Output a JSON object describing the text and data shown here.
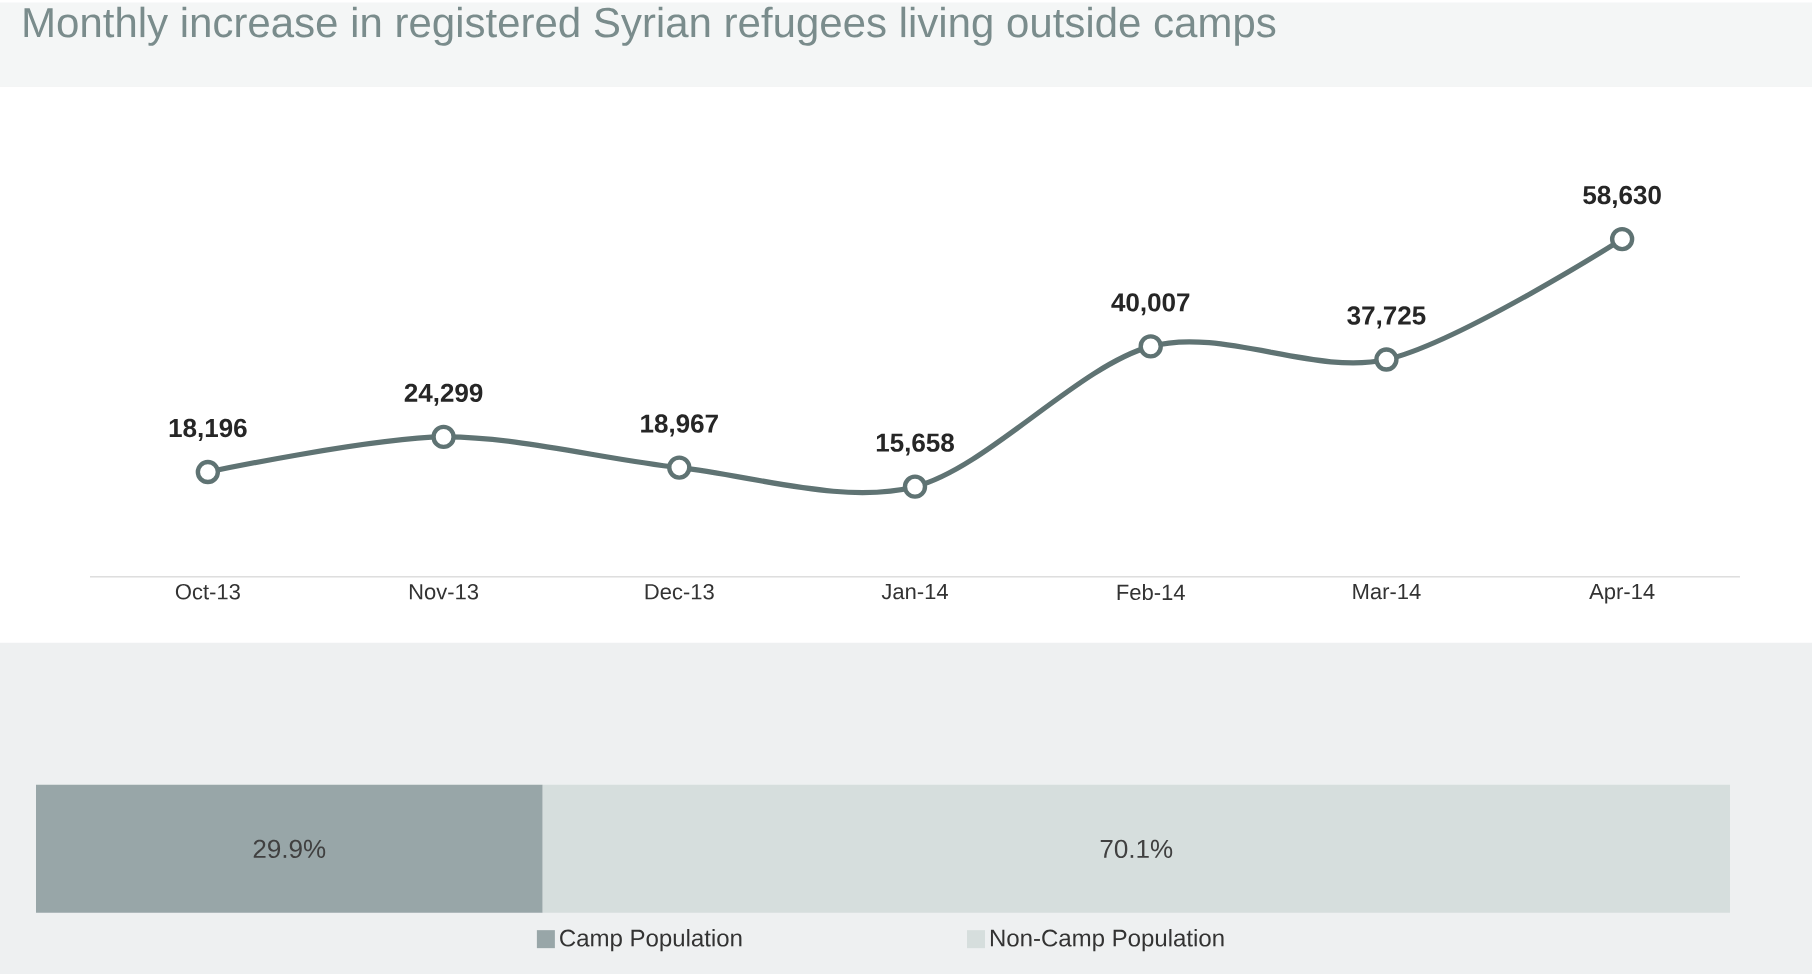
{
  "chart_data": [
    {
      "type": "line",
      "title": "Monthly increase in registered Syrian refugees living outside camps",
      "categories": [
        "Oct-13",
        "Nov-13",
        "Dec-13",
        "Jan-14",
        "Feb-14",
        "Mar-14",
        "Apr-14"
      ],
      "values": [
        18196,
        24299,
        18967,
        15658,
        40007,
        37725,
        58630
      ],
      "value_labels": [
        "18,196",
        "24,299",
        "18,967",
        "15,658",
        "40,007",
        "37,725",
        "58,630"
      ],
      "color": "#5f7373",
      "marker": "circle"
    },
    {
      "type": "bar",
      "orientation": "horizontal",
      "stacked": true,
      "categories": [
        null
      ],
      "legend": "bottom",
      "series": [
        {
          "name": "Camp Population",
          "color": "#98a6a8",
          "values": [
            29.9
          ],
          "value_labels": [
            "29.9%"
          ]
        },
        {
          "name": "Non-Camp Population",
          "color": "#d6dedd",
          "values": [
            70.1
          ],
          "value_labels": [
            "70.1%"
          ]
        }
      ]
    }
  ]
}
